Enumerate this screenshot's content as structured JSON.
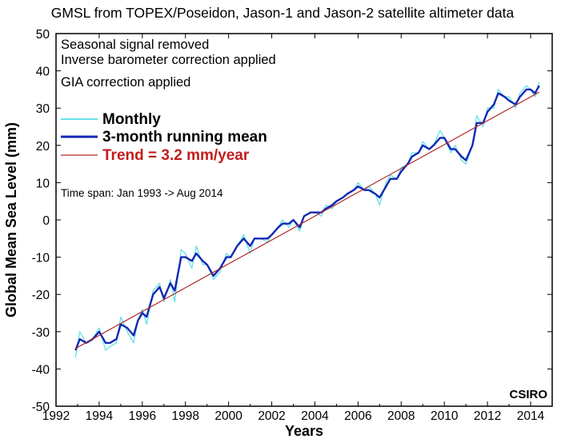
{
  "chart_data": {
    "type": "line",
    "title": "GMSL from TOPEX/Poseidon, Jason-1 and Jason-2 satellite altimeter data",
    "xlabel": "Years",
    "ylabel": "Global Mean Sea Level (mm)",
    "xlim": [
      1992,
      2015
    ],
    "ylim": [
      -50,
      50
    ],
    "xticks": [
      1992,
      1994,
      1996,
      1998,
      2000,
      2002,
      2004,
      2006,
      2008,
      2010,
      2012,
      2014
    ],
    "yticks": [
      -50,
      -40,
      -30,
      -20,
      -10,
      0,
      10,
      20,
      30,
      40,
      50
    ],
    "grid": false,
    "legend_position": "top-left",
    "annotations": [
      "Seasonal signal removed",
      "Inverse barometer correction applied",
      "GIA correction applied"
    ],
    "time_span": "Time span: Jan 1993 -> Aug 2014",
    "credit": "CSIRO",
    "series": [
      {
        "name": "Monthly",
        "color": "#66e0e8",
        "x": [
          1992.9,
          1993.1,
          1993.4,
          1993.7,
          1994.0,
          1994.3,
          1994.5,
          1994.8,
          1995.0,
          1995.3,
          1995.6,
          1995.8,
          1996.0,
          1996.2,
          1996.5,
          1996.8,
          1997.0,
          1997.3,
          1997.5,
          1997.8,
          1998.0,
          1998.3,
          1998.5,
          1998.8,
          1999.0,
          1999.3,
          1999.6,
          1999.9,
          2000.1,
          2000.4,
          2000.7,
          2001.0,
          2001.2,
          2001.5,
          2001.8,
          2002.0,
          2002.3,
          2002.5,
          2002.8,
          2003.0,
          2003.3,
          2003.5,
          2003.8,
          2004.0,
          2004.3,
          2004.5,
          2004.8,
          2005.0,
          2005.3,
          2005.5,
          2005.8,
          2006.0,
          2006.3,
          2006.5,
          2006.8,
          2007.0,
          2007.3,
          2007.5,
          2007.8,
          2008.0,
          2008.3,
          2008.5,
          2008.8,
          2009.0,
          2009.3,
          2009.5,
          2009.8,
          2010.0,
          2010.3,
          2010.5,
          2010.8,
          2011.0,
          2011.3,
          2011.5,
          2011.8,
          2012.0,
          2012.3,
          2012.5,
          2012.8,
          2013.0,
          2013.3,
          2013.5,
          2013.8,
          2014.0,
          2014.2,
          2014.4
        ],
        "values": [
          -37,
          -30,
          -33,
          -32,
          -29,
          -35,
          -34,
          -33,
          -26,
          -30,
          -33,
          -27,
          -24,
          -28,
          -19,
          -17,
          -22,
          -16,
          -22,
          -8,
          -9,
          -13,
          -7,
          -12,
          -12,
          -16,
          -14,
          -9,
          -10,
          -7,
          -4,
          -9,
          -5,
          -5,
          -6,
          -4,
          -2,
          0,
          -2,
          0,
          -3,
          1,
          2,
          2,
          1,
          4,
          3,
          5,
          6,
          7,
          8,
          10,
          8,
          9,
          7,
          4,
          10,
          12,
          11,
          14,
          15,
          18,
          18,
          21,
          19,
          20,
          24,
          22,
          18,
          20,
          16,
          15,
          20,
          28,
          25,
          30,
          30,
          35,
          33,
          33,
          30,
          34,
          36,
          35,
          33,
          37
        ]
      },
      {
        "name": "3-month running mean",
        "color": "#1428b4",
        "x": [
          1992.9,
          1993.1,
          1993.4,
          1993.7,
          1994.0,
          1994.3,
          1994.5,
          1994.8,
          1995.0,
          1995.3,
          1995.6,
          1995.8,
          1996.0,
          1996.2,
          1996.5,
          1996.8,
          1997.0,
          1997.3,
          1997.5,
          1997.8,
          1998.0,
          1998.3,
          1998.5,
          1998.8,
          1999.0,
          1999.3,
          1999.6,
          1999.9,
          2000.1,
          2000.4,
          2000.7,
          2001.0,
          2001.2,
          2001.5,
          2001.8,
          2002.0,
          2002.3,
          2002.5,
          2002.8,
          2003.0,
          2003.3,
          2003.5,
          2003.8,
          2004.0,
          2004.3,
          2004.5,
          2004.8,
          2005.0,
          2005.3,
          2005.5,
          2005.8,
          2006.0,
          2006.3,
          2006.5,
          2006.8,
          2007.0,
          2007.3,
          2007.5,
          2007.8,
          2008.0,
          2008.3,
          2008.5,
          2008.8,
          2009.0,
          2009.3,
          2009.5,
          2009.8,
          2010.0,
          2010.3,
          2010.5,
          2010.8,
          2011.0,
          2011.3,
          2011.5,
          2011.8,
          2012.0,
          2012.3,
          2012.5,
          2012.8,
          2013.0,
          2013.3,
          2013.5,
          2013.8,
          2014.0,
          2014.2,
          2014.4
        ],
        "values": [
          -35,
          -32,
          -33,
          -32,
          -30,
          -33,
          -33,
          -32,
          -28,
          -29,
          -31,
          -27,
          -25,
          -26,
          -20,
          -18,
          -21,
          -17,
          -19,
          -10,
          -10,
          -11,
          -9,
          -11,
          -12,
          -15,
          -13,
          -10,
          -10,
          -7,
          -5,
          -7,
          -5,
          -5,
          -5,
          -4,
          -2,
          -1,
          -1,
          0,
          -2,
          1,
          2,
          2,
          2,
          3,
          4,
          5,
          6,
          7,
          8,
          9,
          8,
          8,
          7,
          6,
          9,
          11,
          11,
          13,
          15,
          17,
          18,
          20,
          19,
          20,
          22,
          22,
          19,
          19,
          17,
          16,
          20,
          26,
          26,
          29,
          31,
          34,
          33,
          32,
          31,
          33,
          35,
          35,
          34,
          36
        ]
      },
      {
        "name": "Trend = 3.2 mm/year",
        "color": "#b02a2a",
        "x": [
          1992.9,
          2014.4
        ],
        "values": [
          -34.5,
          34.3
        ]
      }
    ]
  }
}
